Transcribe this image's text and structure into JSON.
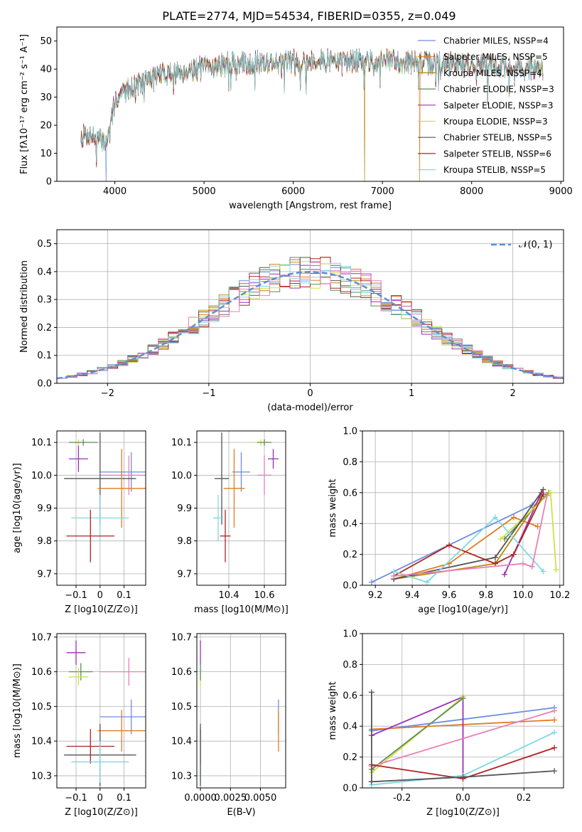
{
  "figure": {
    "title": "PLATE=2774, MJD=54534, FIBERID=0355, z=0.049"
  },
  "colors": {
    "Chabrier MILES": "#6A8FE0",
    "Salpeter MILES": "#E07B20",
    "Kroupa MILES": "#B8860B",
    "Chabrier ELODIE": "#5E8C5E",
    "Salpeter ELODIE": "#9B30B8",
    "Kroupa ELODIE": "#D4E040",
    "Chabrier STELIB": "#555555",
    "Salpeter STELIB": "#B22222",
    "Kroupa STELIB": "#80D8E0",
    "extra_pink": "#E880B8",
    "normal_curve": "#5B8FD9"
  },
  "chart_data": [
    {
      "id": "spectrum",
      "type": "line",
      "title": "PLATE=2774, MJD=54534, FIBERID=0355, z=0.049",
      "xlabel": "wavelength [Angstrom, rest frame]",
      "ylabel": "Flux [fλ10⁻¹⁷ erg cm⁻² s⁻¹ A⁻¹]",
      "xlim": [
        3350,
        9030
      ],
      "ylim": [
        0,
        55
      ],
      "xticks": [
        4000,
        5000,
        6000,
        7000,
        8000,
        9000
      ],
      "yticks": [
        0,
        10,
        20,
        30,
        40,
        50
      ],
      "grid": false,
      "legend_position": "top-right",
      "legend": [
        "Chabrier MILES, NSSP=4",
        "Salpeter MILES, NSSP=5",
        "Kroupa MILES, NSSP=4",
        "Chabrier ELODIE, NSSP=3",
        "Salpeter ELODIE, NSSP=3",
        "Kroupa ELODIE, NSSP=3",
        "Chabrier STELIB, NSSP=5",
        "Salpeter STELIB, NSSP=6",
        "Kroupa STELIB, NSSP=5"
      ],
      "continuum": {
        "x": [
          3620,
          3700,
          3800,
          3900,
          3950,
          4000,
          4100,
          4200,
          4300,
          4400,
          4500,
          4700,
          4900,
          5100,
          5300,
          5500,
          5700,
          5900,
          6100,
          6300,
          6500,
          6700,
          6900,
          7100,
          7300,
          7500,
          7700,
          7900,
          8100,
          8300,
          8500,
          8700,
          8800
        ],
        "y": [
          16,
          17,
          15,
          14,
          18,
          29,
          32,
          34,
          35,
          37,
          38,
          39,
          40,
          41,
          42,
          42,
          42.5,
          42.5,
          43,
          43,
          43,
          43,
          43,
          43,
          42.5,
          42,
          42,
          42,
          41.5,
          41,
          41,
          40.5,
          40
        ]
      },
      "dropouts": [
        {
          "series": "Chabrier MILES",
          "x": 3900
        },
        {
          "series": "Kroupa MILES",
          "x": 6800
        },
        {
          "series": "Salpeter MILES",
          "x": 7420
        }
      ]
    },
    {
      "id": "residuals",
      "type": "histogram",
      "xlabel": "(data-model)/error",
      "ylabel": "Normed distribution",
      "xlim": [
        -2.5,
        2.5
      ],
      "ylim": [
        0,
        0.55
      ],
      "xticks": [
        -2,
        -1,
        0,
        1,
        2
      ],
      "yticks": [
        0.0,
        0.1,
        0.2,
        0.3,
        0.4,
        0.5
      ],
      "grid": true,
      "legend_position": "top-right",
      "legend": [
        "𝒩(0, 1)"
      ],
      "bin_width": 0.1
    },
    {
      "id": "z-age",
      "type": "errorbar",
      "xlabel": "Z [log10(Z/Z⊙)]",
      "ylabel": "age  [log10(age/yr)]",
      "xlim": [
        -0.18,
        0.19
      ],
      "ylim": [
        9.665,
        10.135
      ],
      "xticks": [
        -0.1,
        0.0,
        0.1
      ],
      "yticks": [
        9.7,
        9.8,
        9.9,
        10.0,
        10.1
      ],
      "grid": true,
      "points": [
        {
          "series": "Kroupa ELODIE",
          "x": -0.09,
          "xerr": 0.04,
          "y": 10.1,
          "yerr": 0.01
        },
        {
          "series": "Chabrier ELODIE",
          "x": -0.07,
          "xerr": 0.06,
          "y": 10.1,
          "yerr": 0.01
        },
        {
          "series": "Salpeter ELODIE",
          "x": -0.09,
          "xerr": 0.04,
          "y": 10.05,
          "yerr": 0.04
        },
        {
          "series": "Chabrier MILES",
          "x": 0.13,
          "xerr": 0.13,
          "y": 10.01,
          "yerr": 0.06
        },
        {
          "series": "extra_pink",
          "x": 0.12,
          "xerr": 0.12,
          "y": 10.0,
          "yerr": 0.06
        },
        {
          "series": "Chabrier STELIB",
          "x": 0.0,
          "xerr": 0.15,
          "y": 9.99,
          "yerr": 0.14
        },
        {
          "series": "Salpeter MILES",
          "x": 0.09,
          "xerr": 0.1,
          "y": 9.96,
          "yerr": 0.12
        },
        {
          "series": "Kroupa STELIB",
          "x": 0.0,
          "xerr": 0.12,
          "y": 9.87,
          "yerr": 0.07
        },
        {
          "series": "Salpeter STELIB",
          "x": -0.04,
          "xerr": 0.1,
          "y": 9.815,
          "yerr": 0.08
        }
      ]
    },
    {
      "id": "mass-age",
      "type": "errorbar",
      "xlabel": "mass [log10(M/M⊙)]",
      "ylabel": "",
      "xlim": [
        10.22,
        10.72
      ],
      "ylim": [
        9.665,
        10.135
      ],
      "xticks": [
        10.4,
        10.6
      ],
      "yticks": [
        9.7,
        9.8,
        9.9,
        10.0,
        10.1
      ],
      "grid": true,
      "points": [
        {
          "series": "Kroupa ELODIE",
          "x": 10.58,
          "xerr": 0.04,
          "y": 10.1,
          "yerr": 0.01
        },
        {
          "series": "Chabrier ELODIE",
          "x": 10.6,
          "xerr": 0.04,
          "y": 10.1,
          "yerr": 0.01
        },
        {
          "series": "Salpeter ELODIE",
          "x": 10.65,
          "xerr": 0.03,
          "y": 10.05,
          "yerr": 0.03
        },
        {
          "series": "Chabrier MILES",
          "x": 10.47,
          "xerr": 0.05,
          "y": 10.01,
          "yerr": 0.06
        },
        {
          "series": "extra_pink",
          "x": 10.6,
          "xerr": 0.04,
          "y": 10.0,
          "yerr": 0.06
        },
        {
          "series": "Chabrier STELIB",
          "x": 10.36,
          "xerr": 0.04,
          "y": 9.99,
          "yerr": 0.14
        },
        {
          "series": "Salpeter MILES",
          "x": 10.43,
          "xerr": 0.06,
          "y": 9.96,
          "yerr": 0.12
        },
        {
          "series": "Kroupa STELIB",
          "x": 10.34,
          "xerr": 0.03,
          "y": 9.87,
          "yerr": 0.07
        },
        {
          "series": "Salpeter STELIB",
          "x": 10.38,
          "xerr": 0.03,
          "y": 9.815,
          "yerr": 0.08
        }
      ]
    },
    {
      "id": "age-weight",
      "type": "line",
      "xlabel": "age  [log10(age/yr)]",
      "ylabel": "mass weight",
      "xlim": [
        9.13,
        10.22
      ],
      "ylim": [
        0,
        1.0
      ],
      "xticks": [
        9.2,
        9.4,
        9.6,
        9.8,
        10.0,
        10.2
      ],
      "yticks": [
        0.0,
        0.2,
        0.4,
        0.6,
        0.8,
        1.0
      ],
      "grid": true,
      "series": [
        {
          "name": "Chabrier MILES",
          "x": [
            9.18,
            10.05
          ],
          "y": [
            0.02,
            0.52
          ]
        },
        {
          "name": "Salpeter MILES",
          "x": [
            9.3,
            9.6,
            9.95,
            10.08
          ],
          "y": [
            0.04,
            0.14,
            0.44,
            0.38
          ]
        },
        {
          "name": "Kroupa MILES",
          "x": [
            9.3,
            9.85,
            10.1
          ],
          "y": [
            0.04,
            0.14,
            0.58
          ]
        },
        {
          "name": "Chabrier ELODIE",
          "x": [
            9.9,
            10.14
          ],
          "y": [
            0.3,
            0.6
          ]
        },
        {
          "name": "Salpeter ELODIE",
          "x": [
            9.9,
            10.1
          ],
          "y": [
            0.07,
            0.6
          ]
        },
        {
          "name": "Kroupa ELODIE",
          "x": [
            9.88,
            10.15,
            10.18
          ],
          "y": [
            0.3,
            0.6,
            0.1
          ]
        },
        {
          "name": "Chabrier STELIB",
          "x": [
            9.3,
            9.85,
            10.11
          ],
          "y": [
            0.04,
            0.18,
            0.62
          ]
        },
        {
          "name": "Salpeter STELIB",
          "x": [
            9.3,
            9.6,
            9.85,
            9.95,
            10.11
          ],
          "y": [
            0.06,
            0.26,
            0.14,
            0.2,
            0.59
          ]
        },
        {
          "name": "Kroupa STELIB",
          "x": [
            9.3,
            9.48,
            9.85,
            10.11
          ],
          "y": [
            0.09,
            0.02,
            0.44,
            0.09
          ]
        },
        {
          "name": "extra_pink",
          "x": [
            9.3,
            10.0,
            10.05,
            10.13
          ],
          "y": [
            0.06,
            0.14,
            0.12,
            0.58
          ]
        }
      ]
    },
    {
      "id": "z-mass",
      "type": "errorbar",
      "xlabel": "Z [log10(Z/Z⊙)]",
      "ylabel": "mass [log10(M/M⊙)]",
      "xlim": [
        -0.18,
        0.19
      ],
      "ylim": [
        10.265,
        10.71
      ],
      "xticks": [
        -0.1,
        0.0,
        0.1
      ],
      "yticks": [
        10.3,
        10.4,
        10.5,
        10.6,
        10.7
      ],
      "grid": true,
      "points": [
        {
          "series": "Salpeter ELODIE",
          "x": -0.1,
          "xerr": 0.04,
          "y": 10.655,
          "yerr": 0.035
        },
        {
          "series": "Chabrier ELODIE",
          "x": -0.08,
          "xerr": 0.05,
          "y": 10.6,
          "yerr": 0.025
        },
        {
          "series": "Kroupa ELODIE",
          "x": -0.09,
          "xerr": 0.04,
          "y": 10.585,
          "yerr": 0.025
        },
        {
          "series": "extra_pink",
          "x": 0.12,
          "xerr": 0.12,
          "y": 10.6,
          "yerr": 0.04
        },
        {
          "series": "Chabrier MILES",
          "x": 0.13,
          "xerr": 0.13,
          "y": 10.47,
          "yerr": 0.05
        },
        {
          "series": "Salpeter MILES",
          "x": 0.09,
          "xerr": 0.1,
          "y": 10.43,
          "yerr": 0.06
        },
        {
          "series": "Salpeter STELIB",
          "x": -0.04,
          "xerr": 0.1,
          "y": 10.385,
          "yerr": 0.05
        },
        {
          "series": "Chabrier STELIB",
          "x": 0.0,
          "xerr": 0.15,
          "y": 10.36,
          "yerr": 0.09
        },
        {
          "series": "Kroupa STELIB",
          "x": 0.0,
          "xerr": 0.12,
          "y": 10.34,
          "yerr": 0.06
        }
      ]
    },
    {
      "id": "ebv-mass",
      "type": "errorbar",
      "xlabel": "E(B-V)",
      "ylabel": "",
      "xlim": [
        -0.0003,
        0.0071
      ],
      "ylim": [
        10.265,
        10.71
      ],
      "xticks": [
        0.0,
        0.0025,
        0.005
      ],
      "xticklabels": [
        "0.0000",
        "0.0025",
        "0.0050"
      ],
      "yticks": [
        10.3,
        10.4,
        10.5,
        10.6,
        10.7
      ],
      "grid": true,
      "points": [
        {
          "series": "Salpeter ELODIE",
          "x": 0.0,
          "xerr": 0,
          "y": 10.655,
          "yerr": 0.035
        },
        {
          "series": "Kroupa ELODIE",
          "x": 0.0,
          "xerr": 0,
          "y": 10.585,
          "yerr": 0.025
        },
        {
          "series": "Chabrier ELODIE",
          "x": 0.0,
          "xerr": 0,
          "y": 10.6,
          "yerr": 0.025
        },
        {
          "series": "Salpeter STELIB",
          "x": 0.0,
          "xerr": 0,
          "y": 10.385,
          "yerr": 0.05
        },
        {
          "series": "Kroupa STELIB",
          "x": 0.0,
          "xerr": 0,
          "y": 10.34,
          "yerr": 0.06
        },
        {
          "series": "Chabrier STELIB",
          "x": 0.0,
          "xerr": 0,
          "y": 10.36,
          "yerr": 0.09
        },
        {
          "series": "Chabrier MILES",
          "x": 0.0065,
          "xerr": 0,
          "y": 10.47,
          "yerr": 0.05
        },
        {
          "series": "Salpeter MILES",
          "x": 0.0065,
          "xerr": 0,
          "y": 10.43,
          "yerr": 0.06
        }
      ]
    },
    {
      "id": "z-weight",
      "type": "line",
      "xlabel": "Z [log10(Z/Z⊙)]",
      "ylabel": "mass weight",
      "xlim": [
        -0.33,
        0.33
      ],
      "ylim": [
        0,
        1.0
      ],
      "xticks": [
        -0.2,
        0.0,
        0.2
      ],
      "yticks": [
        0.0,
        0.2,
        0.4,
        0.6,
        0.8,
        1.0
      ],
      "grid": true,
      "series": [
        {
          "name": "Chabrier MILES",
          "x": [
            -0.3,
            0.3
          ],
          "y": [
            0.37,
            0.52
          ]
        },
        {
          "name": "Salpeter MILES",
          "x": [
            -0.3,
            0.3
          ],
          "y": [
            0.38,
            0.44
          ]
        },
        {
          "name": "Salpeter ELODIE",
          "x": [
            -0.3,
            0.0,
            0.0
          ],
          "y": [
            0.34,
            0.59,
            0.08
          ]
        },
        {
          "name": "Kroupa ELODIE",
          "x": [
            -0.3,
            0.0
          ],
          "y": [
            0.1,
            0.59
          ]
        },
        {
          "name": "Chabrier ELODIE",
          "x": [
            -0.3,
            0.0
          ],
          "y": [
            0.12,
            0.58
          ]
        },
        {
          "name": "extra_pink",
          "x": [
            -0.3,
            0.3
          ],
          "y": [
            0.14,
            0.5
          ]
        },
        {
          "name": "Kroupa STELIB",
          "x": [
            -0.3,
            0.0,
            0.3
          ],
          "y": [
            0.02,
            0.08,
            0.36
          ]
        },
        {
          "name": "Salpeter STELIB",
          "x": [
            -0.3,
            0.0,
            0.3
          ],
          "y": [
            0.15,
            0.06,
            0.26
          ]
        },
        {
          "name": "Chabrier STELIB",
          "x": [
            -0.3,
            0.0,
            0.3
          ],
          "y": [
            0.04,
            0.07,
            0.11
          ]
        },
        {
          "name": "Chabrier STELIB",
          "x": [
            -0.3,
            -0.3
          ],
          "y": [
            0.04,
            0.62
          ]
        }
      ]
    }
  ]
}
